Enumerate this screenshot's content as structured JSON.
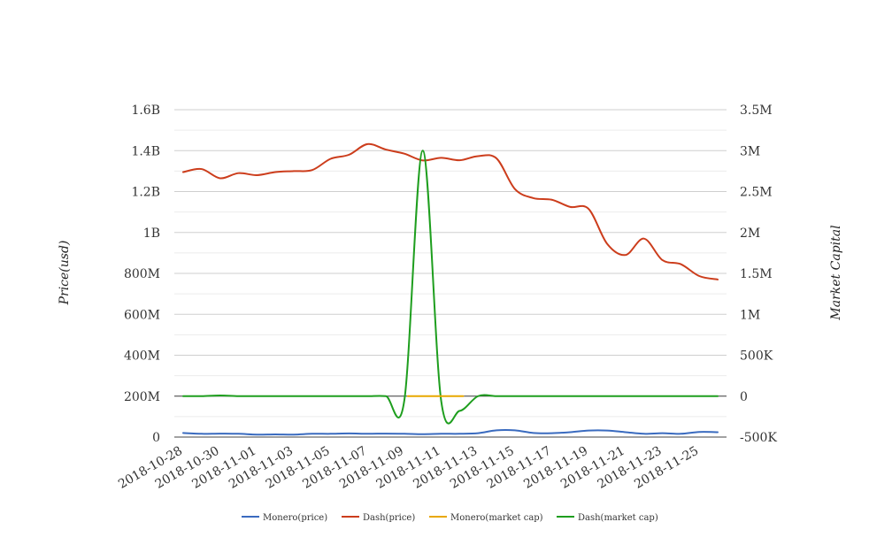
{
  "chart_data": {
    "type": "line",
    "title": "",
    "xlabel": "",
    "ylabel_left": "Price(usd)",
    "ylabel_right": "Market Capital",
    "grid": true,
    "legend_position": "bottom-center",
    "x": [
      "2018-10-28",
      "2018-10-29",
      "2018-10-30",
      "2018-10-31",
      "2018-11-01",
      "2018-11-02",
      "2018-11-03",
      "2018-11-04",
      "2018-11-05",
      "2018-11-06",
      "2018-11-07",
      "2018-11-08",
      "2018-11-09",
      "2018-11-10",
      "2018-11-11",
      "2018-11-12",
      "2018-11-13",
      "2018-11-14",
      "2018-11-15",
      "2018-11-16",
      "2018-11-17",
      "2018-11-18",
      "2018-11-19",
      "2018-11-20",
      "2018-11-21",
      "2018-11-22",
      "2018-11-23",
      "2018-11-24",
      "2018-11-25",
      "2018-11-26"
    ],
    "x_tick_labels": [
      "2018-10-28",
      "2018-10-30",
      "2018-11-01",
      "2018-11-03",
      "2018-11-05",
      "2018-11-07",
      "2018-11-09",
      "2018-11-11",
      "2018-11-13",
      "2018-11-15",
      "2018-11-17",
      "2018-11-19",
      "2018-11-21",
      "2018-11-23",
      "2018-11-25"
    ],
    "y_left": {
      "min": 0,
      "max": 1600000000,
      "ticks": [
        0,
        200000000,
        400000000,
        600000000,
        800000000,
        1000000000,
        1200000000,
        1400000000,
        1600000000
      ],
      "tick_labels": [
        "0",
        "200M",
        "400M",
        "600M",
        "800M",
        "1B",
        "1.2B",
        "1.4B",
        "1.6B"
      ]
    },
    "y_right": {
      "min": -500000,
      "max": 3500000,
      "ticks": [
        -500000,
        0,
        500000,
        1000000,
        1500000,
        2000000,
        2500000,
        3000000,
        3500000
      ],
      "tick_labels": [
        "-500K",
        "0",
        "500K",
        "1M",
        "1.5M",
        "2M",
        "2.5M",
        "3M",
        "3.5M"
      ]
    },
    "series": [
      {
        "name": "Monero(price)",
        "axis": "left",
        "color": "#3a6bbf",
        "values": [
          20000000,
          16000000,
          17000000,
          16000000,
          12000000,
          13000000,
          12000000,
          16000000,
          16000000,
          18000000,
          16000000,
          17000000,
          16000000,
          14000000,
          16000000,
          16000000,
          19000000,
          33000000,
          33000000,
          20000000,
          19000000,
          24000000,
          32000000,
          32000000,
          24000000,
          16000000,
          19000000,
          16000000,
          25000000,
          24000000
        ]
      },
      {
        "name": "Dash(price)",
        "axis": "left",
        "color": "#cc3d1c",
        "values": [
          1295000000,
          1310000000,
          1265000000,
          1290000000,
          1280000000,
          1295000000,
          1300000000,
          1305000000,
          1360000000,
          1380000000,
          1432000000,
          1405000000,
          1385000000,
          1352000000,
          1365000000,
          1353000000,
          1373000000,
          1362000000,
          1212000000,
          1168000000,
          1160000000,
          1125000000,
          1115000000,
          945000000,
          890000000,
          970000000,
          865000000,
          845000000,
          787000000,
          770000000
        ]
      },
      {
        "name": "Monero(market cap)",
        "axis": "right",
        "color": "#e8a800",
        "values": [
          0,
          0,
          0,
          0,
          0,
          0,
          0,
          0,
          0,
          0,
          0,
          0,
          0,
          0,
          0,
          0,
          0,
          0,
          0,
          0,
          0,
          0,
          0,
          0,
          0,
          0,
          0,
          0,
          0,
          0
        ]
      },
      {
        "name": "Dash(market cap)",
        "axis": "right",
        "color": "#1e9e1e",
        "values": [
          0,
          0,
          8000,
          0,
          0,
          0,
          0,
          0,
          0,
          0,
          0,
          0,
          -50000,
          3000000,
          -60000,
          -180000,
          0,
          0,
          0,
          0,
          0,
          0,
          0,
          0,
          0,
          0,
          0,
          0,
          0,
          0
        ]
      }
    ]
  }
}
